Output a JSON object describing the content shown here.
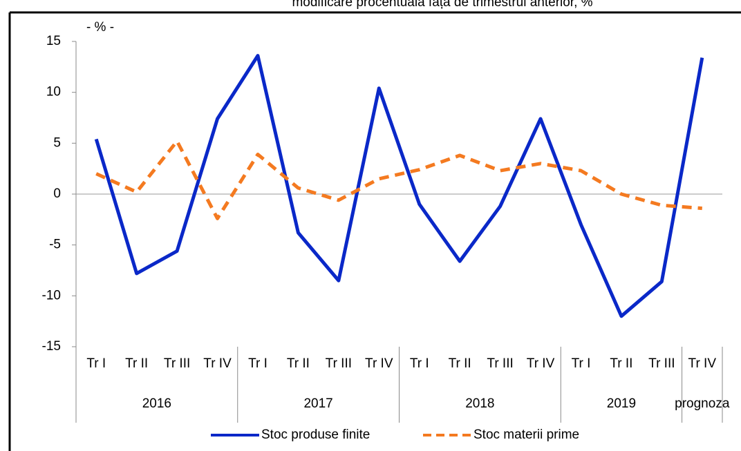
{
  "chart_data": {
    "type": "line",
    "title": "modificare procentuală față de trimestrul anterior, %",
    "unit_label": "- % -",
    "groups": [
      {
        "name": "2016",
        "categories": [
          "Tr I",
          "Tr II",
          "Tr III",
          "Tr IV"
        ]
      },
      {
        "name": "2017",
        "categories": [
          "Tr I",
          "Tr II",
          "Tr III",
          "Tr IV"
        ]
      },
      {
        "name": "2018",
        "categories": [
          "Tr I",
          "Tr II",
          "Tr III",
          "Tr IV"
        ]
      },
      {
        "name": "2019",
        "categories": [
          "Tr I",
          "Tr II",
          "Tr III"
        ]
      },
      {
        "name": "prognoza",
        "categories": [
          "Tr IV"
        ]
      }
    ],
    "series": [
      {
        "name": "Stoc produse finite",
        "color": "#0a28c8",
        "dash": false,
        "values": [
          5.4,
          -7.8,
          -5.6,
          7.4,
          13.6,
          -3.8,
          -8.5,
          10.4,
          -1.0,
          -6.6,
          -1.2,
          7.4,
          -3.0,
          -12.0,
          -8.6,
          13.4
        ]
      },
      {
        "name": "Stoc materii prime",
        "color": "#f47a20",
        "dash": true,
        "values": [
          2.0,
          0.2,
          5.2,
          -2.4,
          3.9,
          0.6,
          -0.6,
          1.5,
          2.4,
          3.8,
          2.3,
          3.0,
          2.3,
          0.0,
          -1.1,
          -1.4
        ]
      }
    ],
    "ylim": [
      -15,
      15
    ],
    "yticks": [
      -15,
      -10,
      -5,
      0,
      5,
      10,
      15
    ]
  }
}
